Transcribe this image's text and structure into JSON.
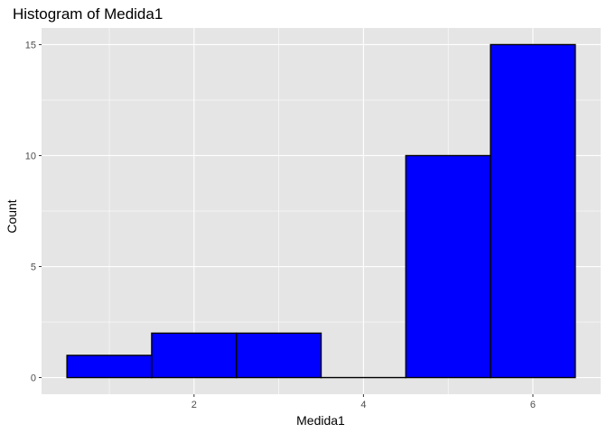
{
  "chart_data": {
    "type": "bar",
    "title": "Histogram of Medida1",
    "xlabel": "Medida1",
    "ylabel": "Count",
    "bins": [
      {
        "x_min": 0.5,
        "x_max": 1.5,
        "count": 1
      },
      {
        "x_min": 1.5,
        "x_max": 2.5,
        "count": 2
      },
      {
        "x_min": 2.5,
        "x_max": 3.5,
        "count": 2
      },
      {
        "x_min": 3.5,
        "x_max": 4.5,
        "count": 0
      },
      {
        "x_min": 4.5,
        "x_max": 5.5,
        "count": 10
      },
      {
        "x_min": 5.5,
        "x_max": 6.5,
        "count": 15
      }
    ],
    "xlim": [
      0.2,
      6.8
    ],
    "ylim": [
      -0.75,
      15.75
    ],
    "x_ticks": [
      2,
      4,
      6
    ],
    "y_ticks": [
      0,
      5,
      10,
      15
    ],
    "x_tick_labels": [
      "2",
      "4",
      "6"
    ],
    "y_tick_labels": [
      "0",
      "5",
      "10",
      "15"
    ],
    "grid": true,
    "fill_color": "#0000FF",
    "border_color": "#000000",
    "panel_color": "#E5E5E5",
    "grid_color": "#FFFFFF"
  }
}
